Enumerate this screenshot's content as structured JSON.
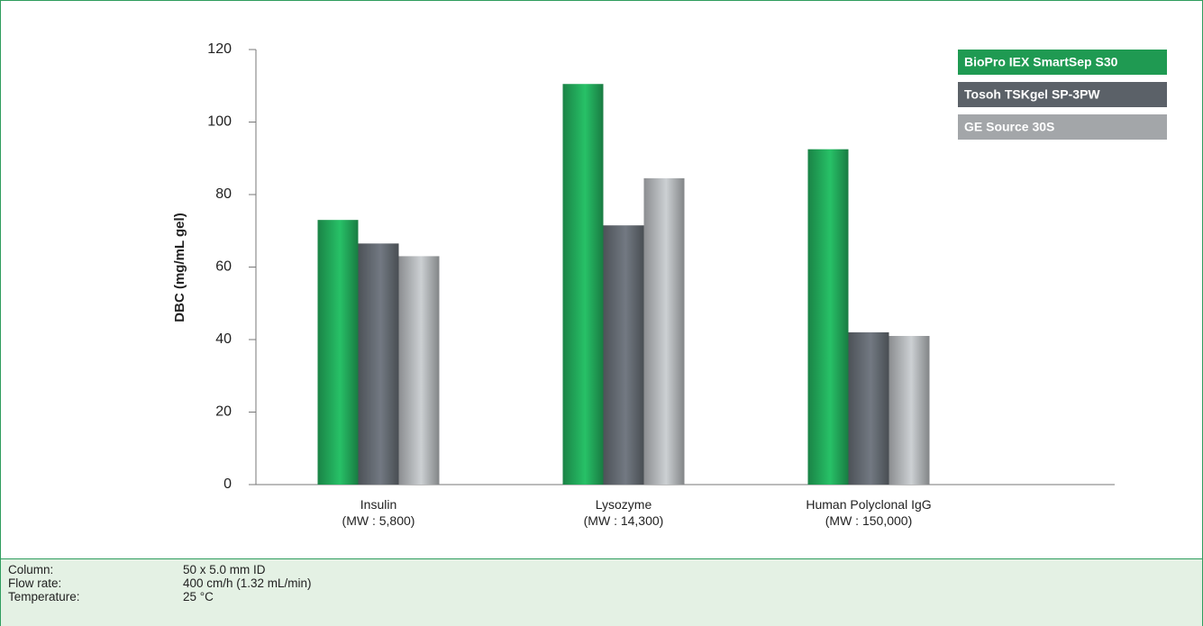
{
  "chart_data": {
    "type": "bar",
    "y_label": "DBC (mg/mL gel)",
    "categories": [
      "Insulin\n(MW : 5,800)",
      "Lysozyme\n(MW : 14,300)",
      "Human Polyclonal IgG\n(MW : 150,000)"
    ],
    "series": [
      {
        "name": "BioPro IEX SmartSep S30",
        "color": "#1f9a52",
        "values": [
          73,
          110.5,
          92.5
        ]
      },
      {
        "name": "Tosoh TSKgel SP-3PW",
        "color": "#5b6168",
        "values": [
          66.5,
          71.5,
          42
        ]
      },
      {
        "name": "GE Source 30S",
        "color": "#a3a6a9",
        "values": [
          63,
          84.5,
          41
        ]
      }
    ],
    "ylim": [
      0,
      120
    ],
    "yticks": [
      0,
      20,
      40,
      60,
      80,
      100,
      120
    ],
    "grid": false,
    "legend": "top-right"
  },
  "footer": {
    "rows": [
      [
        "Column:",
        "50 x 5.0 mm ID"
      ],
      [
        "Flow rate:",
        "400 cm/h (1.32 mL/min)"
      ],
      [
        "Temperature:",
        "25 °C"
      ]
    ]
  }
}
